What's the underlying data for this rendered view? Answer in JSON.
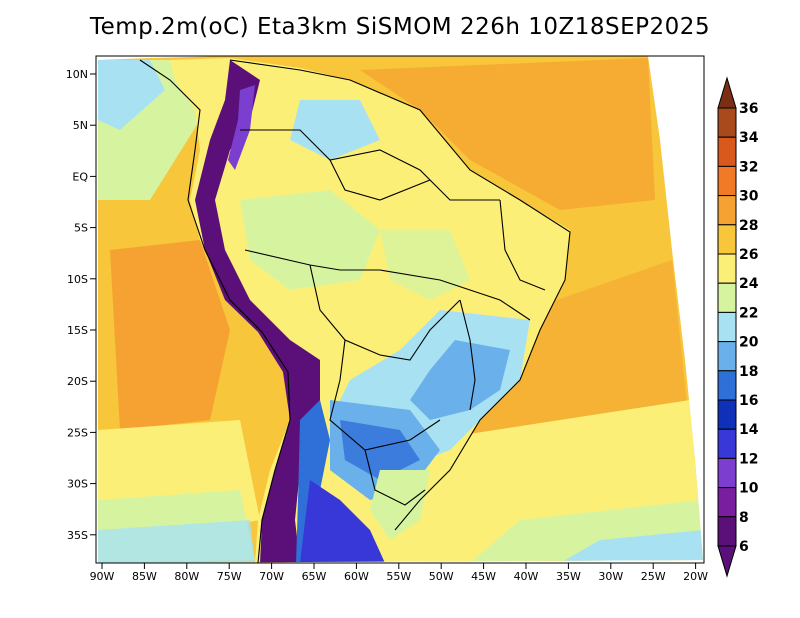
{
  "title": "Temp.2m(oC) Eta3km SiSMOM 226h 10Z18SEP2025",
  "map": {
    "lat_labels": [
      "10N",
      "5N",
      "EQ",
      "5S",
      "10S",
      "15S",
      "20S",
      "25S",
      "30S",
      "35S"
    ],
    "lon_labels": [
      "90W",
      "85W",
      "80W",
      "75W",
      "70W",
      "65W",
      "60W",
      "55W",
      "50W",
      "45W",
      "40W",
      "35W",
      "30W",
      "25W",
      "20W"
    ]
  },
  "colorbar": {
    "labels": [
      "36",
      "34",
      "32",
      "30",
      "28",
      "26",
      "24",
      "22",
      "20",
      "18",
      "16",
      "14",
      "12",
      "10",
      "8",
      "6"
    ],
    "colors": [
      "#7a2e14",
      "#a84a1c",
      "#d9581c",
      "#f07a25",
      "#f5a232",
      "#f7c63a",
      "#fcef78",
      "#d6f4a0",
      "#a8e2f2",
      "#6ab0ea",
      "#2f6fd8",
      "#0f30b8",
      "#3838d8",
      "#7b3ecf",
      "#7a1ea0",
      "#5a1078"
    ]
  }
}
